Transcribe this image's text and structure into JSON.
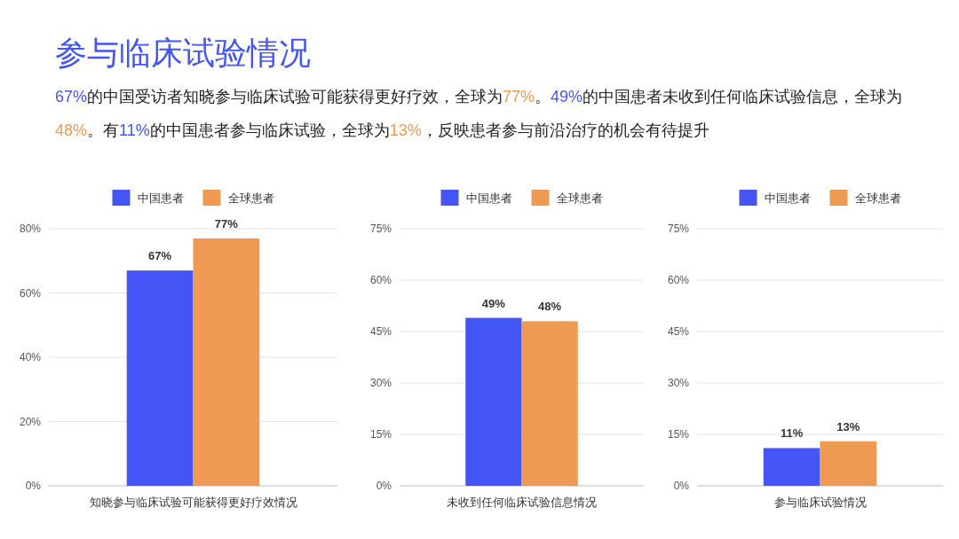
{
  "chart_data": [
    {
      "type": "bar",
      "title": "参与临床试验情况",
      "subtitle": "67%的中国受访者知晓参与临床试验可能获得更好疗效，全球为77%。49%的中国患者未收到任何临床试验信息，全球为48%。有11%的中国患者参与临床试验，全球为13%，反映患者参与前沿治疗的机会有待提升",
      "categories": [
        "知晓参与临床试验可能获得更好疗效情况"
      ],
      "series": [
        {
          "name": "中国患者",
          "color": "#4355f5",
          "values": [
            67
          ],
          "value_labels": [
            "67%"
          ]
        },
        {
          "name": "全球患者",
          "color": "#ef9a52",
          "values": [
            77
          ],
          "value_labels": [
            "77%"
          ]
        }
      ],
      "ylim": [
        0,
        80
      ],
      "yticks": [
        {
          "value": 0,
          "label": "0%"
        },
        {
          "value": 20,
          "label": "20%"
        },
        {
          "value": 40,
          "label": "40%"
        },
        {
          "value": 60,
          "label": "60%"
        },
        {
          "value": 80,
          "label": "80%"
        }
      ],
      "grid": "y",
      "legend": "top"
    },
    {
      "type": "bar",
      "categories": [
        "未收到任何临床试验信息情况"
      ],
      "series": [
        {
          "name": "中国患者",
          "color": "#4355f5",
          "values": [
            49
          ],
          "value_labels": [
            "49%"
          ]
        },
        {
          "name": "全球患者",
          "color": "#ef9a52",
          "values": [
            48
          ],
          "value_labels": [
            "48%"
          ]
        }
      ],
      "ylim": [
        0,
        75
      ],
      "yticks": [
        {
          "value": 0,
          "label": "0%"
        },
        {
          "value": 15,
          "label": "15%"
        },
        {
          "value": 30,
          "label": "30%"
        },
        {
          "value": 45,
          "label": "45%"
        },
        {
          "value": 60,
          "label": "60%"
        },
        {
          "value": 75,
          "label": "75%"
        }
      ],
      "grid": "y",
      "legend": "top"
    },
    {
      "type": "bar",
      "categories": [
        "参与临床试验情况"
      ],
      "series": [
        {
          "name": "中国患者",
          "color": "#4355f5",
          "values": [
            11
          ],
          "value_labels": [
            "11%"
          ]
        },
        {
          "name": "全球患者",
          "color": "#ef9a52",
          "values": [
            13
          ],
          "value_labels": [
            "13%"
          ]
        }
      ],
      "ylim": [
        0,
        75
      ],
      "yticks": [
        {
          "value": 0,
          "label": "0%"
        },
        {
          "value": 15,
          "label": "15%"
        },
        {
          "value": 30,
          "label": "30%"
        },
        {
          "value": 45,
          "label": "45%"
        },
        {
          "value": 60,
          "label": "60%"
        },
        {
          "value": 75,
          "label": "75%"
        }
      ],
      "grid": "y",
      "legend": "top"
    }
  ]
}
